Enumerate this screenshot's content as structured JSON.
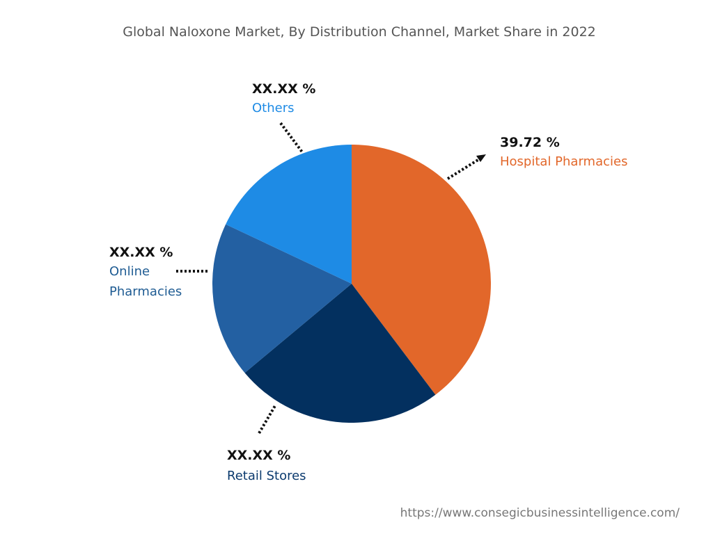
{
  "chart_data": {
    "type": "pie",
    "title": "Global Naloxone Market, By Distribution Channel, Market Share in 2022",
    "slices": [
      {
        "name": "Hospital Pharmacies",
        "value": 39.72,
        "label": "39.72 %",
        "color": "#E2672A"
      },
      {
        "name": "Retail Stores",
        "value": 24.2,
        "label": "XX.XX %",
        "color": "#03305F"
      },
      {
        "name": "Online Pharmacies",
        "value": 18.1,
        "label": "XX.XX %",
        "color": "#2360A2"
      },
      {
        "name": "Others",
        "value": 17.98,
        "label": "XX.XX %",
        "color": "#1E8BE5"
      }
    ],
    "label_colors": {
      "Hospital Pharmacies": "#E2672A",
      "Retail Stores": "#0B3A6E",
      "Online Pharmacies": "#1F5C93",
      "Others": "#1E8BE5"
    },
    "online_label_lines": [
      "Online",
      "Pharmacies"
    ]
  },
  "source": "https://www.consegicbusinessintelligence.com/"
}
